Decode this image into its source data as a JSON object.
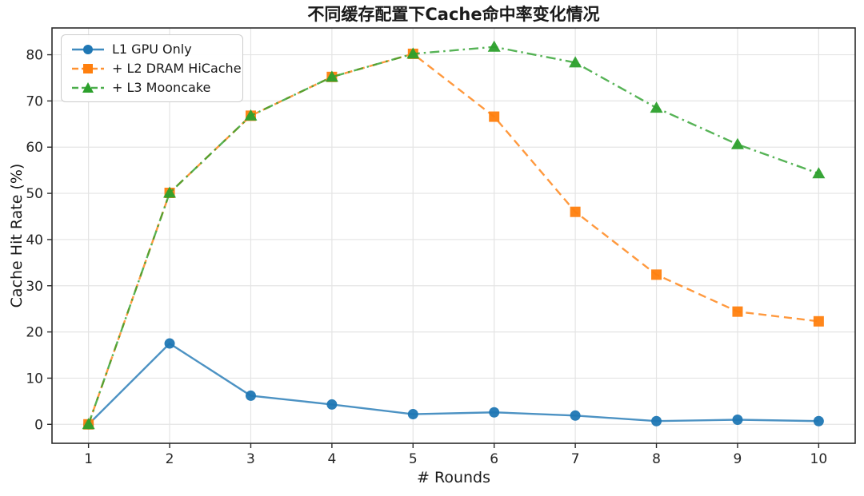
{
  "figure": {
    "background": "#ffffff",
    "grid_color": "#e4e4e4",
    "spine_color": "#2b2b2b"
  },
  "chart_data": {
    "type": "line",
    "title": "不同缓存配置下Cache命中率变化情况",
    "xlabel": "# Rounds",
    "ylabel": "Cache Hit Rate (%)",
    "x": [
      1,
      2,
      3,
      4,
      5,
      6,
      7,
      8,
      9,
      10
    ],
    "xticks": [
      1,
      2,
      3,
      4,
      5,
      6,
      7,
      8,
      9,
      10
    ],
    "yticks": [
      0,
      10,
      20,
      30,
      40,
      50,
      60,
      70,
      80
    ],
    "xlim": [
      0.55,
      10.45
    ],
    "ylim": [
      -4.1,
      85.8
    ],
    "grid": true,
    "legend_position": "upper-left",
    "series": [
      {
        "name": "L1 GPU Only",
        "color": "#1f77b4",
        "line_style": "solid",
        "marker": "circle",
        "values": [
          0.0,
          17.5,
          6.2,
          4.3,
          2.2,
          2.6,
          1.9,
          0.7,
          1.0,
          0.7
        ]
      },
      {
        "name": "+ L2 DRAM HiCache",
        "color": "#ff7f0e",
        "line_style": "dashed",
        "marker": "square",
        "values": [
          0.0,
          50.1,
          66.8,
          75.2,
          80.2,
          66.6,
          46.0,
          32.4,
          24.4,
          22.3
        ]
      },
      {
        "name": "+ L3 Mooncake",
        "color": "#2ca02c",
        "line_style": "dashdot",
        "marker": "triangle",
        "values": [
          0.0,
          50.1,
          66.8,
          75.2,
          80.2,
          81.7,
          78.3,
          68.5,
          60.6,
          54.3
        ]
      }
    ]
  }
}
